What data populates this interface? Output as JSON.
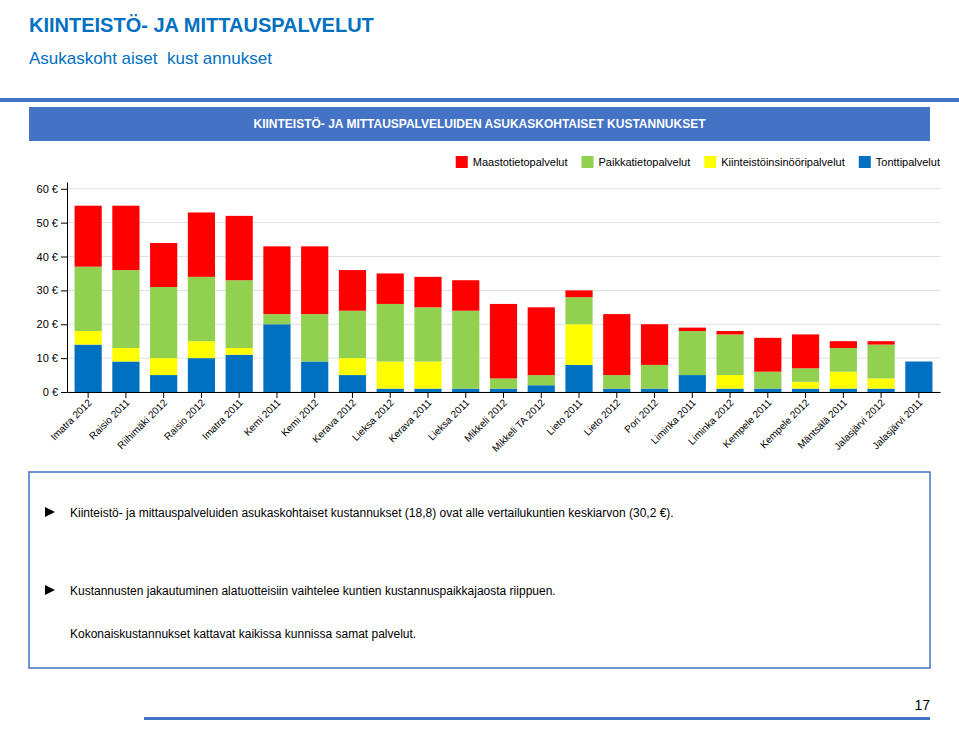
{
  "chart_data": {
    "type": "bar",
    "stacked": true,
    "title": "KIINTEISTÖ- JA MITTAUSPALVELUT",
    "subtitle": "Asukaskoht aiset  kust annukset",
    "annotations": [
      "KIINTEISTÖ- JA MITTAUSPALVELUIDEN ASUKASKOHTAISET KUSTANNUKSET",
      "Kiinteistö- ja mittauspalveluiden asukaskohtaiset kustannukset (18,8) ovat alle vertailukuntien keskiarvon (30,2 €).",
      "Kustannusten jakautuminen alatuotteisiin vaihtelee kuntien kustannuspaikkajaosta riippuen.",
      "Kokonaiskustannukset kattavat kaikissa kunnissa samat palvelut.",
      "17"
    ],
    "categories": [
      "Imatra 2012",
      "Raisio 2011",
      "Riihimäki 2012",
      "Raisio 2012",
      "Imatra 2011",
      "Kemi 2011",
      "Kemi 2012",
      "Kerava 2012",
      "Lieksa 2012",
      "Kerava 2011",
      "Lieksa 2011",
      "Mikkeli 2012",
      "Mikkeli TA 2012",
      "Lieto 2011",
      "Lieto 2012",
      "Pori 2012",
      "Liminka 2011",
      "Liminka 2012",
      "Kempele 2011",
      "Kempele 2012",
      "Mäntsälä 2011",
      "Jalasjärvi 2012",
      "Jalasjärvi 2011"
    ],
    "series": [
      {
        "name": "Maastotietopalvelut",
        "color": "#FF0000",
        "values": [
          18,
          19,
          13,
          19,
          19,
          20,
          20,
          12,
          9,
          9,
          9,
          22,
          20,
          2,
          18,
          12,
          1,
          1,
          10,
          10,
          2,
          1,
          0
        ]
      },
      {
        "name": "Paikkatietopalvelut",
        "color": "#92D050",
        "values": [
          19,
          23,
          21,
          19,
          20,
          3,
          14,
          14,
          17,
          16,
          23,
          3,
          3,
          8,
          4,
          7,
          13,
          12,
          5,
          4,
          7,
          10,
          0
        ]
      },
      {
        "name": "Kiinteistöinsinööripalvelut",
        "color": "#FFFF00",
        "values": [
          4,
          4,
          5,
          5,
          2,
          0,
          0,
          5,
          8,
          8,
          0,
          0,
          0,
          12,
          0,
          0,
          0,
          4,
          0,
          2,
          5,
          3,
          0
        ]
      },
      {
        "name": "Tonttipalvelut",
        "color": "#0070C0",
        "values": [
          14,
          9,
          5,
          10,
          11,
          20,
          9,
          5,
          1,
          1,
          1,
          1,
          2,
          8,
          1,
          1,
          5,
          1,
          1,
          1,
          1,
          1,
          9
        ]
      }
    ],
    "ylim": [
      0,
      62
    ],
    "yticks": [
      {
        "value": 0,
        "label": "0 €"
      },
      {
        "value": 10,
        "label": "10 €"
      },
      {
        "value": 20,
        "label": "20 €"
      },
      {
        "value": 30,
        "label": "30 €"
      },
      {
        "value": 40,
        "label": "40 €"
      },
      {
        "value": 50,
        "label": "50 €"
      },
      {
        "value": 60,
        "label": "60 €"
      }
    ],
    "grid": true,
    "legend": "top-right"
  }
}
